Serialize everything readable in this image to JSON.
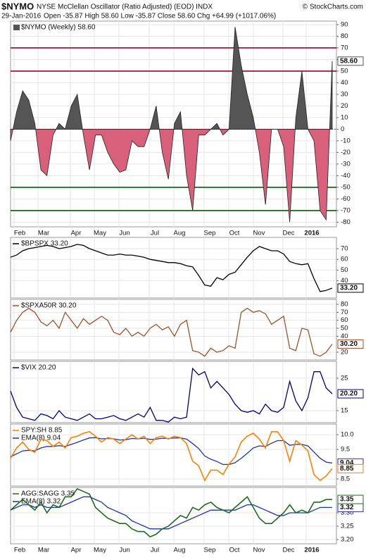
{
  "header": {
    "symbol": "$NYMO",
    "name": "NYSE McClellan Oscillator (Ratio Adjusted) (EOD) INDX",
    "credit": "© StockCharts.com",
    "date": "29-Jan-2016",
    "stats": "Open -35.87   High 58.60   Low -35.87   Close 58.60   Chg +64.99 (+1017.06%)"
  },
  "x_labels": [
    "Feb",
    "Mar",
    "Apr",
    "May",
    "Jun",
    "Jul",
    "Aug",
    "Sep",
    "Oct",
    "Nov",
    "Dec",
    "2016"
  ],
  "chart_data": [
    {
      "type": "area",
      "ylim": [
        -84,
        93
      ],
      "yticks": [
        90,
        80,
        70,
        60,
        50,
        40,
        30,
        20,
        10,
        0,
        -10,
        -20,
        -30,
        -40,
        -50,
        -60,
        -70,
        -80
      ],
      "ref_lines": [
        {
          "value": 70,
          "color": "#a0002a"
        },
        {
          "value": 50,
          "color": "#a0002a"
        },
        {
          "value": -50,
          "color": "#0a5a0a"
        },
        {
          "value": -70,
          "color": "#0a5a0a"
        }
      ],
      "series": [
        {
          "name": "$NYMO (Weekly) 58.60",
          "color": "#555555",
          "negative_color": "#d9607a",
          "last_label": "58.60",
          "values": [
            -10,
            15,
            33,
            25,
            5,
            -35,
            -40,
            -5,
            5,
            0,
            20,
            30,
            -5,
            -35,
            -5,
            -5,
            -20,
            -30,
            -37,
            -35,
            -10,
            -15,
            -15,
            0,
            20,
            -20,
            -43,
            5,
            15,
            -40,
            -70,
            -5,
            -5,
            0,
            5,
            -5,
            0,
            88,
            55,
            30,
            10,
            -20,
            -65,
            0,
            0,
            -15,
            -80,
            10,
            50,
            0,
            -10,
            -70,
            -78,
            58.6
          ]
        }
      ]
    },
    {
      "type": "line",
      "ylim": [
        24,
        80.5
      ],
      "yticks": [
        40,
        50,
        60,
        70
      ],
      "series": [
        {
          "name": "$BPSPX 33.20",
          "color": "#000000",
          "last_label": "33.20",
          "values": [
            62,
            64,
            68,
            70,
            71,
            72,
            73,
            72,
            70,
            71,
            72,
            74,
            73,
            70,
            68,
            66,
            64,
            64,
            65,
            64,
            64,
            63,
            62,
            60,
            59,
            58,
            57,
            57,
            56,
            54,
            53,
            45,
            36,
            35,
            43,
            41,
            46,
            48,
            55,
            62,
            68,
            72,
            70,
            68,
            68,
            65,
            58,
            56,
            55,
            56,
            42,
            30,
            31,
            33.2
          ]
        }
      ]
    },
    {
      "type": "line",
      "ylim": [
        10.3,
        86.2
      ],
      "yticks": [
        20,
        40,
        50,
        60,
        70,
        80
      ],
      "series": [
        {
          "name": "$SPXA50R 30.20",
          "color": "#a0522d",
          "last_label": "30.20",
          "values": [
            45,
            60,
            70,
            75,
            70,
            58,
            53,
            60,
            50,
            70,
            60,
            50,
            62,
            55,
            60,
            65,
            60,
            45,
            42,
            50,
            40,
            45,
            40,
            50,
            55,
            48,
            52,
            40,
            55,
            60,
            22,
            20,
            15,
            25,
            20,
            22,
            28,
            25,
            70,
            75,
            70,
            72,
            68,
            55,
            60,
            65,
            25,
            22,
            50,
            48,
            18,
            15,
            20,
            30.2
          ]
        }
      ]
    },
    {
      "type": "line",
      "ylim": [
        11.3,
        30.2
      ],
      "yticks": [
        15,
        25
      ],
      "series": [
        {
          "name": "$VIX 20.20",
          "color": "#000080",
          "last_label": "20.20",
          "values": [
            21,
            16,
            13,
            12.5,
            12,
            14,
            13.5,
            12.5,
            15,
            13,
            12.5,
            12,
            13,
            14,
            12.5,
            12.5,
            13,
            13.5,
            12.5,
            12,
            13,
            14,
            13,
            16,
            12,
            12,
            11.5,
            13,
            12.5,
            13,
            28,
            26,
            27,
            22,
            24,
            22,
            20,
            17,
            15,
            14.5,
            15,
            14,
            17,
            15,
            14.5,
            16,
            24,
            18,
            15,
            19,
            27,
            27,
            22,
            20.2
          ]
        }
      ]
    },
    {
      "type": "line",
      "ylim": [
        8.26,
        10.36
      ],
      "yticks": [
        {
          "value": 8.5,
          "label": "8.5"
        },
        {
          "value": 9.5,
          "label": "9.5"
        },
        {
          "value": 10,
          "label": "10.0"
        }
      ],
      "series": [
        {
          "name": "EMA(8) 9.04",
          "color": "#2233aa",
          "last_label": "9.04",
          "values": [
            9.25,
            9.35,
            9.45,
            9.47,
            9.45,
            9.55,
            9.6,
            9.6,
            9.63,
            9.6,
            9.67,
            9.74,
            9.82,
            9.89,
            9.9,
            9.86,
            9.87,
            9.86,
            9.82,
            9.83,
            9.87,
            9.86,
            9.88,
            9.84,
            9.85,
            9.88,
            9.87,
            9.89,
            9.89,
            9.85,
            9.7,
            9.53,
            9.28,
            9.17,
            9.09,
            8.99,
            8.99,
            9.05,
            9.2,
            9.37,
            9.55,
            9.62,
            9.6,
            9.71,
            9.8,
            9.8,
            9.64,
            9.67,
            9.67,
            9.62,
            9.41,
            9.2,
            9.07,
            9.04
          ]
        },
        {
          "name": "SPY:SH 8.85",
          "color": "#ff7f00",
          "last_label": "8.85",
          "values": [
            9.2,
            9.55,
            9.75,
            9.5,
            9.4,
            9.85,
            9.8,
            9.6,
            9.75,
            9.55,
            9.9,
            9.95,
            10.05,
            10.1,
            9.95,
            9.75,
            9.9,
            9.85,
            9.7,
            9.85,
            10.0,
            9.85,
            9.95,
            9.7,
            9.9,
            9.95,
            9.85,
            9.95,
            9.9,
            9.7,
            9.1,
            8.95,
            8.45,
            8.8,
            8.8,
            8.65,
            9.0,
            9.25,
            9.75,
            9.95,
            10.05,
            9.85,
            9.55,
            10.1,
            10.1,
            9.8,
            9.1,
            9.8,
            9.65,
            9.45,
            8.65,
            8.45,
            8.6,
            8.85
          ]
        }
      ]
    },
    {
      "type": "line",
      "ylim": [
        3.184,
        3.395
      ],
      "yticks": [
        {
          "value": 3.2,
          "label": "3.20"
        },
        {
          "value": 3.25,
          "label": "3.25"
        },
        {
          "value": 3.3,
          "label": "3.30"
        }
      ],
      "series": [
        {
          "name": "EMA(8) 3.32",
          "color": "#2233aa",
          "last_label": "3.32",
          "values": [
            3.31,
            3.32,
            3.33,
            3.33,
            3.32,
            3.33,
            3.32,
            3.32,
            3.32,
            3.33,
            3.34,
            3.35,
            3.36,
            3.36,
            3.35,
            3.34,
            3.32,
            3.31,
            3.3,
            3.29,
            3.27,
            3.26,
            3.25,
            3.24,
            3.24,
            3.24,
            3.24,
            3.25,
            3.26,
            3.27,
            3.28,
            3.29,
            3.3,
            3.31,
            3.31,
            3.31,
            3.31,
            3.31,
            3.32,
            3.33,
            3.33,
            3.32,
            3.31,
            3.3,
            3.29,
            3.29,
            3.3,
            3.3,
            3.3,
            3.3,
            3.31,
            3.32,
            3.32,
            3.32
          ]
        },
        {
          "name": "AGG:SAGG 3.35",
          "color": "#1a6e1a",
          "last_label": "3.35",
          "values": [
            3.31,
            3.33,
            3.35,
            3.33,
            3.31,
            3.34,
            3.3,
            3.33,
            3.32,
            3.36,
            3.36,
            3.39,
            3.38,
            3.37,
            3.32,
            3.3,
            3.28,
            3.27,
            3.26,
            3.26,
            3.24,
            3.23,
            3.23,
            3.21,
            3.22,
            3.24,
            3.25,
            3.27,
            3.29,
            3.28,
            3.32,
            3.31,
            3.33,
            3.34,
            3.32,
            3.31,
            3.3,
            3.32,
            3.34,
            3.36,
            3.32,
            3.28,
            3.26,
            3.26,
            3.28,
            3.3,
            3.33,
            3.3,
            3.31,
            3.3,
            3.34,
            3.34,
            3.35,
            3.35
          ]
        }
      ]
    }
  ]
}
